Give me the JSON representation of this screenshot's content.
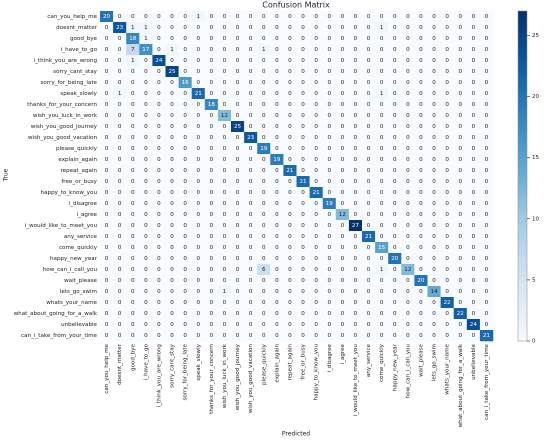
{
  "chart_data": {
    "type": "heatmap",
    "title": "Confusion Matrix",
    "x_label": "Predicted",
    "y_label": "True",
    "labels": [
      "can_you_help_me",
      "doesnt_matter",
      "good_bye",
      "i_have_to_go",
      "i_think_you_are_wrong",
      "sorry_cant_stay",
      "sorry_for_being_late",
      "speak_slowly",
      "thanks_for_your_concern",
      "wish_you_luck_in_work",
      "wish_you_good_journey",
      "wish_you_good_vacation",
      "please_quickly",
      "explain_again",
      "repeat_again",
      "free_or_busy",
      "happy_to_know_you",
      "i_disagree",
      "i_agree",
      "i_would_like_to_meet_you",
      "any_service",
      "come_quickly",
      "happy_new_year",
      "how_can_i_call_you",
      "wait_please",
      "lets_go_swim",
      "whats_your_name",
      "what_about_going_for_a_walk",
      "unbelievable",
      "can_i_take_from_your_time"
    ],
    "matrix": [
      [
        20,
        0,
        0,
        0,
        0,
        0,
        0,
        1,
        0,
        0,
        0,
        0,
        0,
        0,
        0,
        0,
        0,
        0,
        0,
        0,
        0,
        0,
        0,
        0,
        0,
        0,
        0,
        0,
        0,
        0
      ],
      [
        0,
        23,
        1,
        1,
        0,
        0,
        0,
        0,
        0,
        0,
        0,
        0,
        0,
        0,
        0,
        0,
        0,
        0,
        0,
        0,
        0,
        1,
        0,
        0,
        0,
        0,
        0,
        0,
        0,
        0
      ],
      [
        0,
        0,
        18,
        1,
        0,
        0,
        0,
        0,
        0,
        0,
        0,
        0,
        0,
        0,
        0,
        0,
        0,
        0,
        0,
        0,
        0,
        0,
        0,
        0,
        0,
        0,
        0,
        0,
        0,
        0
      ],
      [
        0,
        0,
        7,
        17,
        0,
        1,
        0,
        0,
        0,
        0,
        0,
        0,
        1,
        0,
        0,
        0,
        0,
        0,
        0,
        0,
        0,
        0,
        0,
        0,
        0,
        0,
        0,
        0,
        0,
        0
      ],
      [
        0,
        0,
        1,
        0,
        24,
        0,
        0,
        0,
        0,
        0,
        0,
        0,
        0,
        0,
        0,
        0,
        0,
        0,
        0,
        0,
        0,
        0,
        0,
        0,
        0,
        0,
        0,
        0,
        0,
        0
      ],
      [
        0,
        0,
        0,
        0,
        0,
        25,
        0,
        0,
        0,
        0,
        0,
        0,
        0,
        0,
        0,
        0,
        0,
        0,
        0,
        0,
        0,
        0,
        0,
        0,
        0,
        0,
        0,
        0,
        0,
        0
      ],
      [
        0,
        0,
        0,
        0,
        0,
        0,
        16,
        0,
        0,
        0,
        0,
        0,
        0,
        0,
        0,
        0,
        0,
        0,
        0,
        0,
        0,
        0,
        0,
        0,
        0,
        0,
        0,
        0,
        0,
        0
      ],
      [
        0,
        1,
        0,
        0,
        0,
        0,
        0,
        21,
        0,
        0,
        0,
        0,
        0,
        0,
        0,
        0,
        0,
        0,
        0,
        0,
        0,
        1,
        0,
        0,
        0,
        0,
        0,
        0,
        0,
        0
      ],
      [
        0,
        0,
        0,
        0,
        0,
        0,
        0,
        0,
        18,
        0,
        0,
        0,
        0,
        0,
        0,
        0,
        0,
        0,
        0,
        0,
        0,
        0,
        0,
        0,
        0,
        0,
        0,
        0,
        0,
        0
      ],
      [
        0,
        0,
        0,
        0,
        0,
        0,
        0,
        0,
        0,
        12,
        0,
        0,
        0,
        0,
        0,
        0,
        0,
        0,
        0,
        0,
        0,
        0,
        0,
        0,
        0,
        0,
        0,
        0,
        0,
        0
      ],
      [
        0,
        0,
        0,
        0,
        0,
        0,
        0,
        0,
        0,
        0,
        25,
        0,
        0,
        0,
        0,
        0,
        0,
        0,
        0,
        0,
        0,
        0,
        0,
        0,
        0,
        0,
        0,
        0,
        0,
        0
      ],
      [
        0,
        0,
        0,
        0,
        0,
        0,
        0,
        0,
        0,
        0,
        0,
        23,
        0,
        0,
        0,
        0,
        0,
        0,
        0,
        0,
        0,
        0,
        0,
        0,
        0,
        0,
        0,
        0,
        0,
        0
      ],
      [
        0,
        0,
        0,
        0,
        0,
        0,
        0,
        0,
        0,
        0,
        0,
        0,
        19,
        0,
        0,
        0,
        0,
        0,
        0,
        0,
        0,
        0,
        0,
        0,
        0,
        0,
        0,
        0,
        0,
        0
      ],
      [
        0,
        0,
        0,
        0,
        0,
        0,
        0,
        0,
        0,
        0,
        0,
        0,
        0,
        19,
        0,
        0,
        0,
        0,
        0,
        0,
        0,
        0,
        0,
        0,
        0,
        0,
        0,
        0,
        0,
        0
      ],
      [
        0,
        0,
        0,
        0,
        0,
        0,
        0,
        0,
        0,
        0,
        0,
        0,
        0,
        0,
        21,
        0,
        0,
        0,
        0,
        0,
        0,
        0,
        0,
        0,
        0,
        0,
        0,
        0,
        0,
        0
      ],
      [
        0,
        0,
        0,
        0,
        0,
        0,
        0,
        0,
        0,
        0,
        0,
        0,
        0,
        0,
        0,
        21,
        0,
        0,
        0,
        0,
        0,
        0,
        0,
        0,
        0,
        0,
        0,
        0,
        0,
        0
      ],
      [
        0,
        0,
        0,
        0,
        0,
        0,
        0,
        0,
        0,
        0,
        0,
        0,
        0,
        0,
        0,
        0,
        21,
        0,
        0,
        0,
        0,
        0,
        0,
        0,
        0,
        0,
        0,
        0,
        0,
        0
      ],
      [
        0,
        0,
        0,
        0,
        0,
        0,
        0,
        0,
        0,
        0,
        0,
        0,
        0,
        0,
        0,
        0,
        0,
        19,
        0,
        0,
        0,
        0,
        0,
        0,
        0,
        0,
        0,
        0,
        0,
        0
      ],
      [
        0,
        0,
        0,
        0,
        0,
        0,
        0,
        0,
        0,
        0,
        0,
        0,
        0,
        0,
        0,
        0,
        0,
        0,
        12,
        0,
        0,
        0,
        0,
        0,
        0,
        0,
        0,
        0,
        0,
        0
      ],
      [
        0,
        0,
        0,
        0,
        0,
        0,
        0,
        0,
        0,
        0,
        0,
        0,
        0,
        0,
        0,
        0,
        0,
        0,
        0,
        27,
        0,
        0,
        0,
        0,
        0,
        0,
        0,
        0,
        0,
        0
      ],
      [
        0,
        0,
        0,
        0,
        0,
        0,
        0,
        0,
        0,
        0,
        0,
        0,
        0,
        0,
        0,
        0,
        0,
        0,
        0,
        0,
        21,
        0,
        0,
        0,
        0,
        0,
        0,
        0,
        0,
        0
      ],
      [
        0,
        0,
        0,
        0,
        0,
        0,
        0,
        0,
        0,
        0,
        0,
        0,
        0,
        0,
        0,
        0,
        0,
        0,
        0,
        0,
        0,
        15,
        0,
        0,
        0,
        0,
        0,
        0,
        0,
        0
      ],
      [
        0,
        0,
        0,
        0,
        0,
        0,
        0,
        0,
        0,
        0,
        0,
        0,
        0,
        0,
        0,
        0,
        0,
        0,
        0,
        0,
        0,
        0,
        20,
        0,
        0,
        0,
        0,
        0,
        0,
        0
      ],
      [
        0,
        0,
        0,
        0,
        0,
        0,
        0,
        0,
        0,
        0,
        0,
        0,
        6,
        0,
        0,
        0,
        0,
        0,
        0,
        0,
        0,
        1,
        0,
        12,
        0,
        0,
        0,
        0,
        0,
        0
      ],
      [
        0,
        0,
        0,
        0,
        0,
        0,
        0,
        0,
        0,
        0,
        0,
        0,
        0,
        0,
        0,
        0,
        0,
        0,
        0,
        0,
        0,
        0,
        0,
        0,
        20,
        0,
        0,
        0,
        0,
        0
      ],
      [
        0,
        0,
        0,
        0,
        0,
        0,
        0,
        0,
        0,
        1,
        0,
        0,
        0,
        0,
        0,
        0,
        0,
        0,
        0,
        0,
        0,
        0,
        0,
        0,
        0,
        14,
        0,
        0,
        0,
        0
      ],
      [
        0,
        0,
        0,
        0,
        0,
        0,
        0,
        0,
        0,
        0,
        0,
        0,
        0,
        0,
        0,
        0,
        0,
        0,
        0,
        0,
        0,
        0,
        0,
        0,
        0,
        0,
        22,
        0,
        0,
        0
      ],
      [
        0,
        0,
        0,
        0,
        0,
        0,
        0,
        0,
        0,
        0,
        0,
        0,
        0,
        0,
        0,
        0,
        0,
        0,
        0,
        0,
        0,
        0,
        0,
        0,
        0,
        0,
        0,
        22,
        0,
        0
      ],
      [
        0,
        0,
        0,
        0,
        0,
        0,
        0,
        0,
        0,
        0,
        0,
        0,
        0,
        0,
        0,
        0,
        0,
        0,
        0,
        0,
        0,
        0,
        0,
        0,
        0,
        0,
        0,
        0,
        24,
        0
      ],
      [
        0,
        0,
        0,
        0,
        0,
        0,
        0,
        0,
        0,
        0,
        0,
        0,
        0,
        0,
        0,
        0,
        0,
        0,
        0,
        0,
        0,
        0,
        0,
        0,
        0,
        0,
        0,
        0,
        0,
        21
      ]
    ],
    "colormap": "Blues",
    "colorbar_lim": [
      0,
      27
    ],
    "colorbar_ticks": [
      0,
      5,
      10,
      15,
      20,
      25
    ]
  }
}
